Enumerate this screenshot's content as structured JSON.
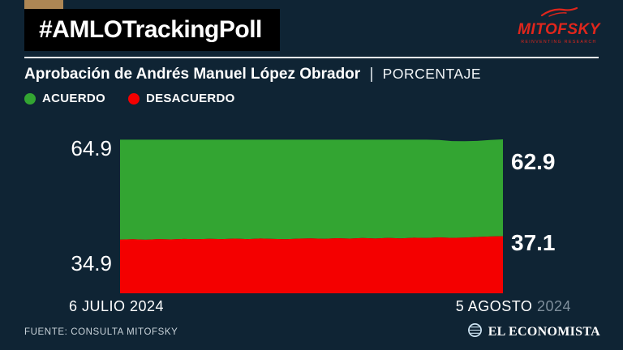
{
  "theme": {
    "background": "#0f2434",
    "bar_background": "#000000",
    "accent_tab": "#ad8654",
    "brand_red": "#e0261c",
    "green": "#33a532",
    "red": "#f40000",
    "muted_year": "#7f8f9c"
  },
  "header": {
    "hashtag": "#AMLOTrackingPoll",
    "brand": {
      "name": "MITOFSKY",
      "tagline": "REINVENTING RESEARCH"
    }
  },
  "title": {
    "main": "Aprobación de Andrés Manuel López Obrador",
    "divider": "|",
    "sub": "PORCENTAJE"
  },
  "legend": [
    {
      "label": "ACUERDO",
      "color": "#33a532"
    },
    {
      "label": "DESACUERDO",
      "color": "#f40000"
    }
  ],
  "chart_data": {
    "type": "area",
    "stacked": true,
    "title": "Aprobación de Andrés Manuel López Obrador (PORCENTAJE)",
    "xlabel": "",
    "ylabel": "Porcentaje",
    "ylim": [
      0,
      100
    ],
    "x_range_labels": [
      "6 JULIO 2024",
      "5 AGOSTO 2024"
    ],
    "legend_position": "top-left",
    "grid": false,
    "series": [
      {
        "name": "DESACUERDO",
        "color": "#f40000",
        "values": [
          34.9,
          35.1,
          34.8,
          35.2,
          35.0,
          35.3,
          35.1,
          35.4,
          35.2,
          35.5,
          35.2,
          35.6,
          35.3,
          35.1,
          35.5,
          35.7,
          35.4,
          35.8,
          35.5,
          35.9,
          35.6,
          36.0,
          35.7,
          36.1,
          35.9,
          36.3,
          36.0,
          36.2,
          36.6,
          36.9,
          37.1
        ]
      },
      {
        "name": "ACUERDO",
        "color": "#33a532",
        "values": [
          64.9,
          64.7,
          65.0,
          64.6,
          64.8,
          64.5,
          64.7,
          64.4,
          64.6,
          64.3,
          64.6,
          64.2,
          64.5,
          64.7,
          64.3,
          64.1,
          64.4,
          64.0,
          64.3,
          63.9,
          64.2,
          63.8,
          64.1,
          63.7,
          63.9,
          63.3,
          62.9,
          62.6,
          62.4,
          62.7,
          62.9
        ]
      }
    ],
    "annotations": {
      "acuerdo_start": "64.9",
      "desacuerdo_start": "34.9",
      "acuerdo_end": "62.9",
      "desacuerdo_end": "37.1"
    }
  },
  "axis": {
    "start_label": "6 JULIO 2024",
    "end_label_main": "5 AGOSTO",
    "end_label_year": "2024"
  },
  "footer": {
    "source": "FUENTE: CONSULTA MITOFSKY",
    "publisher": "EL ECONOMISTA"
  }
}
